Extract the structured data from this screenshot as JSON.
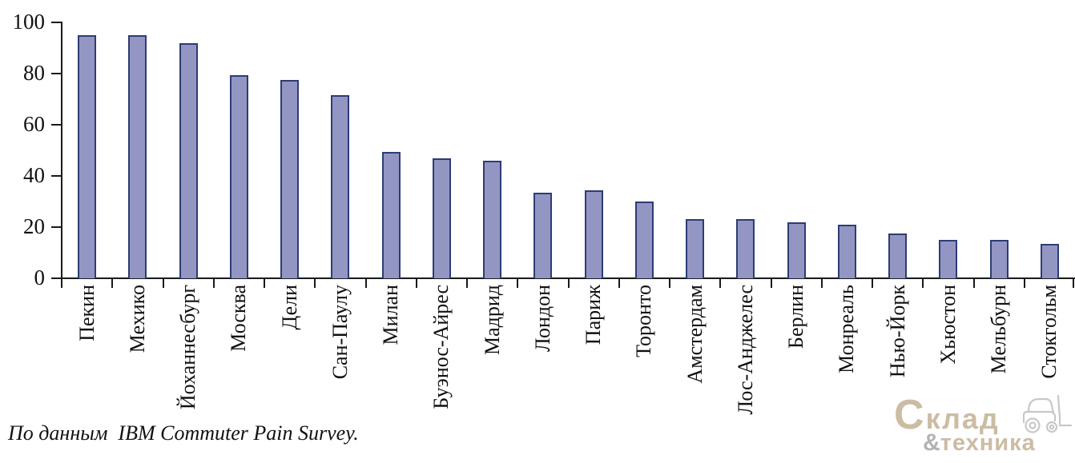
{
  "chart_data": {
    "type": "bar",
    "categories": [
      "Пекин",
      "Мехико",
      "Йоханнесбург",
      "Москва",
      "Дели",
      "Сан-Паулу",
      "Милан",
      "Буэнос-Айрес",
      "Мадрид",
      "Лондон",
      "Париж",
      "Торонто",
      "Амстердам",
      "Лос-Анджелес",
      "Берлин",
      "Монреаль",
      "Нью-Йорк",
      "Хьюстон",
      "Мельбурн",
      "Стокгольм"
    ],
    "values": [
      95,
      95,
      92,
      79.5,
      77.5,
      71.5,
      49.5,
      47,
      46,
      33.5,
      34.5,
      30,
      23,
      23,
      22,
      21,
      17.5,
      15,
      15,
      13.5
    ],
    "title": "",
    "xlabel": "",
    "ylabel": "",
    "ylim": [
      0,
      100
    ],
    "yticks": [
      0,
      20,
      40,
      60,
      80,
      100
    ],
    "grid": false,
    "legend": "none",
    "bar_fill": "#9396C3",
    "bar_border": "#2D3C74",
    "axis_color": "#1A1A1A"
  },
  "caption": {
    "text": "По данным  IBM Commuter Pain Survey."
  },
  "logo": {
    "word1": "Склад",
    "amp": "&",
    "word2": "техника",
    "word_color": "#CBBCA3",
    "amp_color": "#B3B3B3",
    "forklift_color": "#C8C8C8"
  }
}
